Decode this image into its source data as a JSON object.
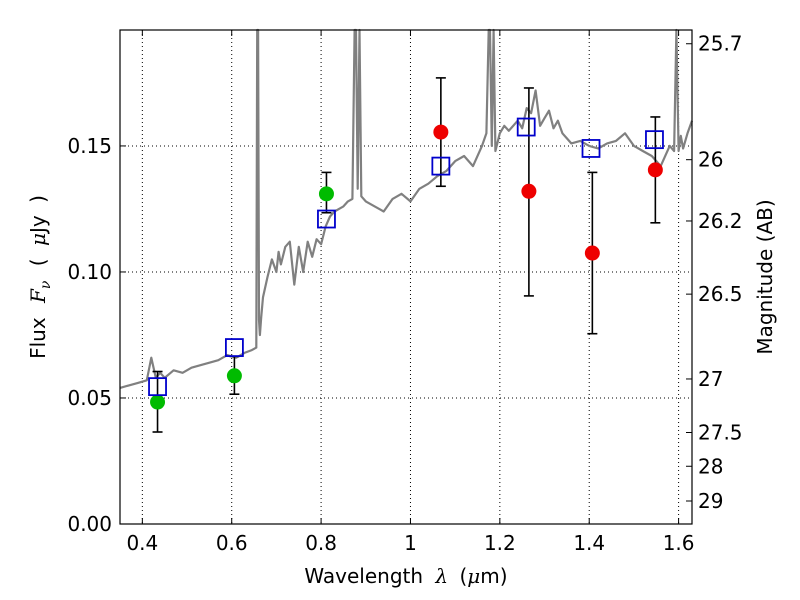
{
  "chart_data": {
    "type": "scatter",
    "xlabel_prefix": "Wavelength",
    "xlabel_sym": "λ",
    "xlabel_unit_prefix": "(",
    "xlabel_unit_mu": "μ",
    "xlabel_unit_suffix": "m)",
    "ylabel_prefix": "Flux",
    "ylabel_F": "F",
    "ylabel_nu": "ν",
    "ylabel_paren_open": "(",
    "ylabel_mu": "μ",
    "ylabel_unit": "Jy",
    "ylabel_paren_close": ")",
    "y2label": "Magnitude (AB)",
    "xlim": [
      0.35,
      1.63
    ],
    "ylim": [
      0.0,
      0.196
    ],
    "x_ticks": [
      {
        "value": 0.4,
        "label": "0.4"
      },
      {
        "value": 0.6,
        "label": "0.6"
      },
      {
        "value": 0.8,
        "label": "0.8"
      },
      {
        "value": 1.0,
        "label": "1"
      },
      {
        "value": 1.2,
        "label": "1.2"
      },
      {
        "value": 1.4,
        "label": "1.4"
      },
      {
        "value": 1.6,
        "label": "1.6"
      }
    ],
    "y_ticks": [
      {
        "value": 0.0,
        "label": "0.00"
      },
      {
        "value": 0.05,
        "label": "0.05"
      },
      {
        "value": 0.1,
        "label": "0.10"
      },
      {
        "value": 0.15,
        "label": "0.15"
      }
    ],
    "y2_ticks": [
      {
        "value": 25.7,
        "label": "25.7"
      },
      {
        "value": 26.0,
        "label": "26"
      },
      {
        "value": 26.2,
        "label": "26.2"
      },
      {
        "value": 26.5,
        "label": "26.5"
      },
      {
        "value": 27.0,
        "label": "27"
      },
      {
        "value": 27.5,
        "label": "27.5"
      },
      {
        "value": 28.0,
        "label": "28"
      },
      {
        "value": 29.0,
        "label": "29"
      }
    ],
    "grid": true,
    "spectrum": {
      "name": "model spectrum",
      "color": "#808080",
      "x": [
        0.35,
        0.37,
        0.39,
        0.41,
        0.42,
        0.43,
        0.44,
        0.45,
        0.47,
        0.49,
        0.51,
        0.53,
        0.55,
        0.57,
        0.59,
        0.61,
        0.63,
        0.645,
        0.655,
        0.657,
        0.659,
        0.661,
        0.663,
        0.666,
        0.67,
        0.68,
        0.69,
        0.7,
        0.705,
        0.71,
        0.72,
        0.73,
        0.74,
        0.75,
        0.76,
        0.77,
        0.78,
        0.79,
        0.8,
        0.81,
        0.82,
        0.83,
        0.84,
        0.85,
        0.86,
        0.87,
        0.875,
        0.878,
        0.882,
        0.886,
        0.89,
        0.9,
        0.92,
        0.94,
        0.96,
        0.98,
        1.0,
        1.02,
        1.04,
        1.06,
        1.08,
        1.1,
        1.12,
        1.14,
        1.16,
        1.17,
        1.175,
        1.178,
        1.182,
        1.186,
        1.19,
        1.2,
        1.21,
        1.22,
        1.24,
        1.25,
        1.26,
        1.27,
        1.28,
        1.29,
        1.3,
        1.31,
        1.32,
        1.33,
        1.34,
        1.35,
        1.36,
        1.38,
        1.4,
        1.42,
        1.44,
        1.46,
        1.48,
        1.5,
        1.52,
        1.54,
        1.56,
        1.58,
        1.59,
        1.595,
        1.6,
        1.605,
        1.61,
        1.62,
        1.63
      ],
      "y": [
        0.054,
        0.055,
        0.056,
        0.057,
        0.066,
        0.058,
        0.06,
        0.058,
        0.061,
        0.06,
        0.062,
        0.063,
        0.064,
        0.065,
        0.067,
        0.066,
        0.068,
        0.069,
        0.07,
        0.196,
        0.196,
        0.081,
        0.075,
        0.082,
        0.09,
        0.098,
        0.105,
        0.1,
        0.108,
        0.103,
        0.11,
        0.112,
        0.095,
        0.11,
        0.1,
        0.112,
        0.106,
        0.113,
        0.111,
        0.118,
        0.122,
        0.124,
        0.125,
        0.126,
        0.128,
        0.129,
        0.196,
        0.196,
        0.133,
        0.196,
        0.13,
        0.128,
        0.126,
        0.124,
        0.129,
        0.131,
        0.128,
        0.133,
        0.135,
        0.138,
        0.14,
        0.144,
        0.146,
        0.142,
        0.15,
        0.155,
        0.196,
        0.196,
        0.15,
        0.196,
        0.148,
        0.155,
        0.158,
        0.156,
        0.16,
        0.157,
        0.165,
        0.163,
        0.172,
        0.158,
        0.161,
        0.164,
        0.157,
        0.16,
        0.155,
        0.153,
        0.151,
        0.152,
        0.15,
        0.149,
        0.151,
        0.152,
        0.155,
        0.15,
        0.148,
        0.146,
        0.142,
        0.15,
        0.148,
        0.196,
        0.148,
        0.154,
        0.149,
        0.155,
        0.16
      ]
    },
    "series": [
      {
        "name": "green photometry",
        "color": "#00bb00",
        "points": [
          {
            "x": 0.434,
            "y": 0.0484,
            "ylo": 0.0365,
            "yhi": 0.0605
          },
          {
            "x": 0.606,
            "y": 0.0588,
            "ylo": 0.0515,
            "yhi": 0.0665
          },
          {
            "x": 0.812,
            "y": 0.131,
            "ylo": 0.1235,
            "yhi": 0.1395
          }
        ]
      },
      {
        "name": "red photometry",
        "color": "#ee0000",
        "points": [
          {
            "x": 1.068,
            "y": 0.1555,
            "ylo": 0.134,
            "yhi": 0.177
          },
          {
            "x": 1.265,
            "y": 0.132,
            "ylo": 0.0905,
            "yhi": 0.173
          },
          {
            "x": 1.407,
            "y": 0.1075,
            "ylo": 0.0755,
            "yhi": 0.1395
          },
          {
            "x": 1.548,
            "y": 0.1405,
            "ylo": 0.1195,
            "yhi": 0.1615
          }
        ]
      },
      {
        "name": "model synthetic photometry",
        "color": "#0000cc",
        "points": [
          {
            "x": 0.434,
            "y": 0.0545
          },
          {
            "x": 0.606,
            "y": 0.07
          },
          {
            "x": 0.812,
            "y": 0.121
          },
          {
            "x": 1.068,
            "y": 0.142
          },
          {
            "x": 1.259,
            "y": 0.1575
          },
          {
            "x": 1.404,
            "y": 0.149
          },
          {
            "x": 1.546,
            "y": 0.1525
          }
        ]
      }
    ]
  }
}
